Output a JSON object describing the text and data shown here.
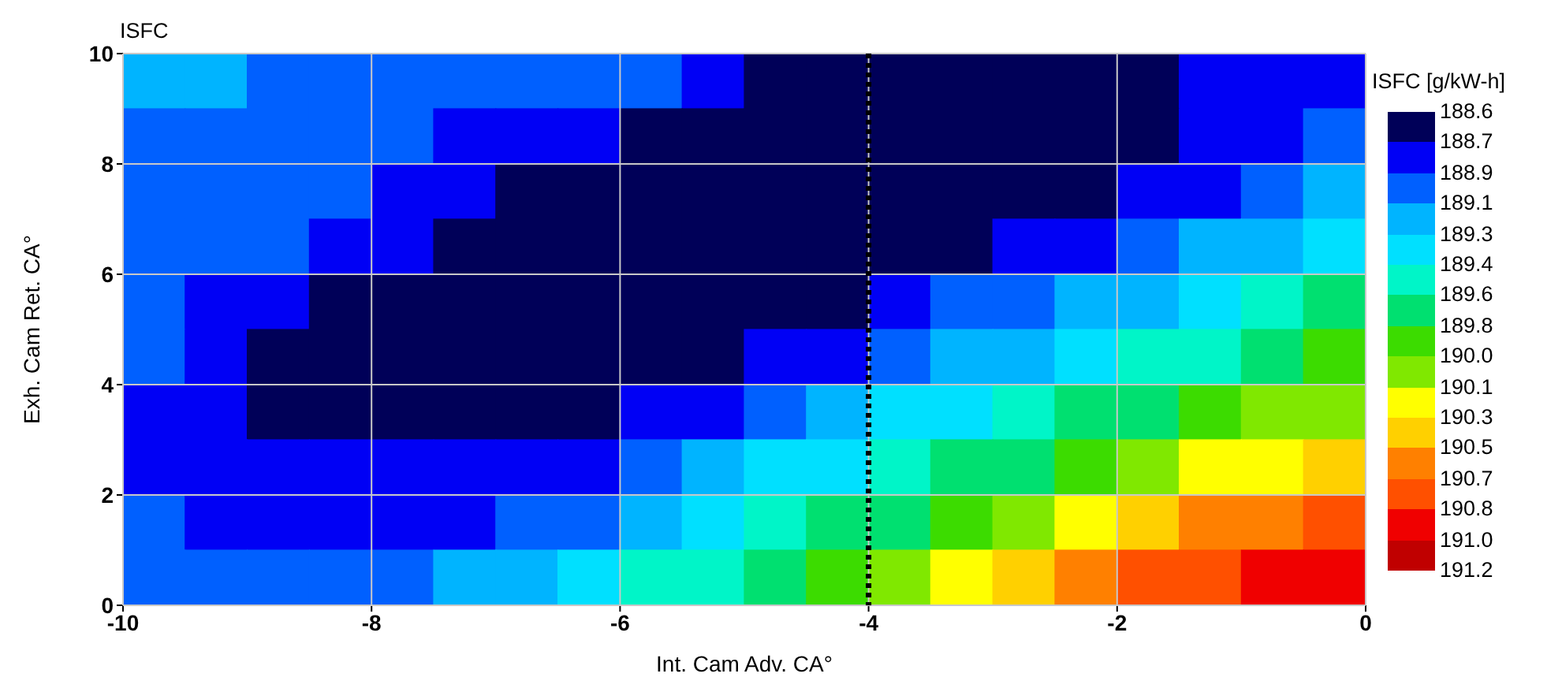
{
  "chart_data": {
    "type": "heatmap",
    "title": "ISFC",
    "xlabel": "Int. Cam Adv. CA°",
    "ylabel": "Exh. Cam Ret. CA°",
    "clabel": "ISFC [g/kW-h]",
    "x": [
      -9.75,
      -9.25,
      -8.75,
      -8.25,
      -7.75,
      -7.25,
      -6.75,
      -6.25,
      -5.75,
      -5.25,
      -4.75,
      -4.25,
      -3.75,
      -3.25,
      -2.75,
      -2.25,
      -1.75,
      -1.25,
      -0.75,
      -0.25
    ],
    "cells": [
      [
        189.2,
        189.2,
        189.0,
        189.0,
        189.0,
        189.0,
        189.0,
        189.0,
        189.0,
        188.8,
        188.65,
        188.65,
        188.65,
        188.65,
        188.65,
        188.65,
        188.65,
        188.8,
        188.8,
        188.8
      ],
      [
        189.0,
        189.0,
        189.0,
        189.0,
        189.0,
        188.8,
        188.8,
        188.8,
        188.65,
        188.65,
        188.65,
        188.65,
        188.65,
        188.65,
        188.65,
        188.65,
        188.65,
        188.8,
        188.8,
        189.0
      ],
      [
        189.0,
        189.0,
        189.0,
        189.0,
        188.8,
        188.8,
        188.65,
        188.65,
        188.65,
        188.65,
        188.65,
        188.65,
        188.65,
        188.65,
        188.65,
        188.65,
        188.8,
        188.8,
        189.0,
        189.2
      ],
      [
        189.0,
        189.0,
        189.0,
        188.8,
        188.8,
        188.65,
        188.65,
        188.65,
        188.65,
        188.65,
        188.65,
        188.65,
        188.65,
        188.65,
        188.8,
        188.8,
        189.0,
        189.2,
        189.2,
        189.35
      ],
      [
        189.0,
        188.8,
        188.8,
        188.65,
        188.65,
        188.65,
        188.65,
        188.65,
        188.65,
        188.65,
        188.65,
        188.65,
        188.8,
        189.0,
        189.0,
        189.2,
        189.2,
        189.35,
        189.5,
        189.7
      ],
      [
        189.0,
        188.8,
        188.65,
        188.65,
        188.65,
        188.65,
        188.65,
        188.65,
        188.65,
        188.65,
        188.8,
        188.8,
        189.0,
        189.2,
        189.2,
        189.35,
        189.5,
        189.5,
        189.7,
        189.9
      ],
      [
        188.8,
        188.8,
        188.65,
        188.65,
        188.65,
        188.65,
        188.65,
        188.65,
        188.8,
        188.8,
        189.0,
        189.2,
        189.35,
        189.35,
        189.5,
        189.7,
        189.7,
        189.9,
        190.05,
        190.05
      ],
      [
        188.8,
        188.8,
        188.8,
        188.8,
        188.8,
        188.8,
        188.8,
        188.8,
        189.0,
        189.2,
        189.35,
        189.35,
        189.5,
        189.7,
        189.7,
        189.9,
        190.05,
        190.2,
        190.2,
        190.4
      ],
      [
        189.0,
        188.8,
        188.8,
        188.8,
        188.8,
        188.8,
        189.0,
        189.0,
        189.2,
        189.35,
        189.5,
        189.7,
        189.7,
        189.9,
        190.05,
        190.2,
        190.4,
        190.6,
        190.6,
        190.75
      ],
      [
        189.0,
        189.0,
        189.0,
        189.0,
        189.0,
        189.2,
        189.2,
        189.35,
        189.5,
        189.5,
        189.7,
        189.9,
        190.05,
        190.2,
        190.4,
        190.6,
        190.75,
        190.75,
        190.9,
        190.9
      ]
    ],
    "colors": [
      "#000058",
      "#0000f5",
      "#0060ff",
      "#00b4ff",
      "#00e0ff",
      "#00f5c8",
      "#00e070",
      "#3cdc00",
      "#80e800",
      "#ffff00",
      "#ffd000",
      "#ff8000",
      "#ff5000",
      "#f00000",
      "#c00000"
    ],
    "clim": [
      188.6,
      191.2
    ],
    "cticks": [
      188.6,
      188.7,
      188.9,
      189.1,
      189.3,
      189.4,
      189.6,
      189.8,
      {
        "value": 190.0,
        "label": "190.0"
      },
      190.1,
      190.3,
      190.5,
      190.7,
      190.8,
      {
        "value": 191.0,
        "label": "191.0"
      },
      191.2
    ],
    "xlim": [
      -10,
      0
    ],
    "xticks": [
      -10,
      -8,
      -6,
      -4,
      -2,
      0
    ],
    "ylim": [
      0,
      10
    ],
    "yticks": [
      0,
      2,
      4,
      6,
      8,
      10
    ],
    "grid": true,
    "ref_lines": [
      {
        "axis": "x",
        "value": -4,
        "color": "#000000",
        "line_style": "dotted"
      }
    ]
  }
}
